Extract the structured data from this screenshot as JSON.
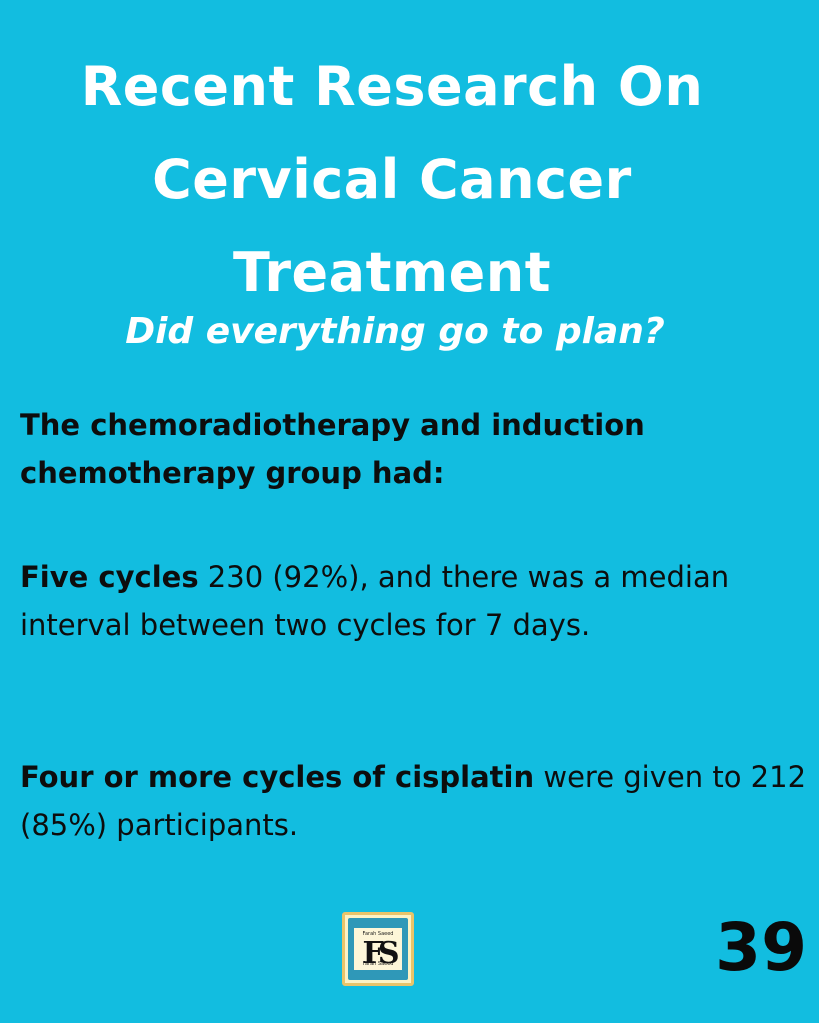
{
  "title_lines": [
    "Recent Research On",
    "Cervical Cancer",
    "Treatment"
  ],
  "subtitle": "Did everything go to plan?",
  "intro": "The chemoradiotherapy and induction chemotherapy group had:",
  "paragraph1": {
    "bold": "Five cycles",
    "text": " 230 (92%), and there was a median interval between two cycles for 7 days."
  },
  "paragraph2": {
    "bold": "Four or more cycles of cisplatin",
    "text": " were given to 212 (85%) participants."
  },
  "logo": {
    "monogram": "FS",
    "name_top": "Farah Saeed",
    "name_bottom": "Farah Saeed"
  },
  "page_number": "39",
  "colors": {
    "background": "#12bde0",
    "title": "#ffffff",
    "body": "#0d0d0d"
  }
}
